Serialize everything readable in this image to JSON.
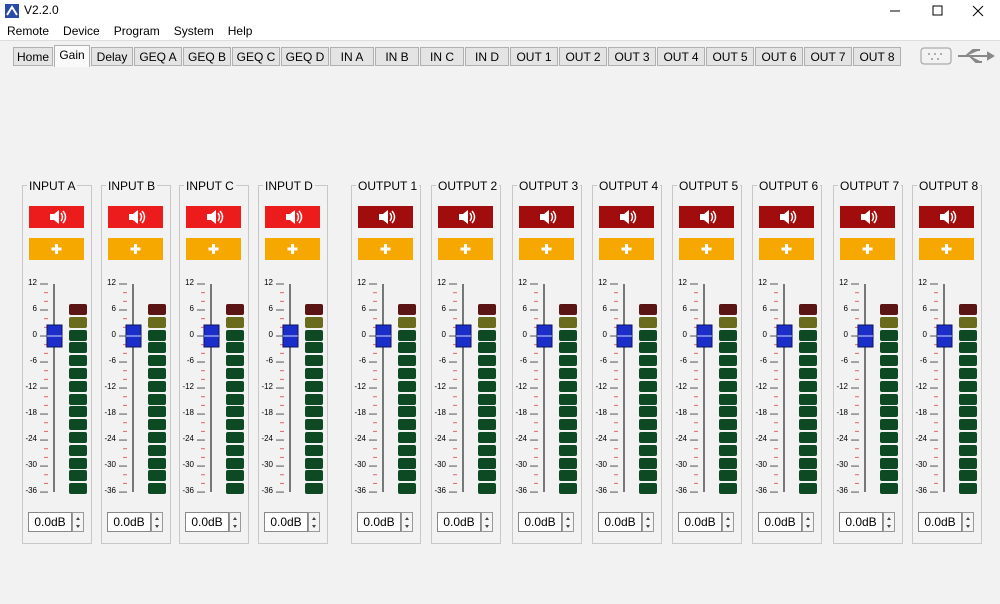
{
  "window": {
    "title": "V2.2.0"
  },
  "menu": [
    "Remote",
    "Device",
    "Program",
    "System",
    "Help"
  ],
  "tabs": [
    "Home",
    "Gain",
    "Delay",
    "GEQ A",
    "GEQ B",
    "GEQ C",
    "GEQ D",
    "IN A",
    "IN B",
    "IN C",
    "IN D",
    "OUT 1",
    "OUT 2",
    "OUT 3",
    "OUT 4",
    "OUT 5",
    "OUT 6",
    "OUT 7",
    "OUT 8"
  ],
  "scale": [
    "12",
    "6",
    "0",
    "-6",
    "-12",
    "-18",
    "-24",
    "-30",
    "-36"
  ],
  "channels": [
    {
      "name": "INPUT A",
      "gain": "0.0dB"
    },
    {
      "name": "INPUT B",
      "gain": "0.0dB"
    },
    {
      "name": "INPUT C",
      "gain": "0.0dB"
    },
    {
      "name": "INPUT D",
      "gain": "0.0dB"
    },
    {
      "name": "OUTPUT 1",
      "gain": "0.0dB"
    },
    {
      "name": "OUTPUT 2",
      "gain": "0.0dB"
    },
    {
      "name": "OUTPUT 3",
      "gain": "0.0dB"
    },
    {
      "name": "OUTPUT 4",
      "gain": "0.0dB"
    },
    {
      "name": "OUTPUT 5",
      "gain": "0.0dB"
    },
    {
      "name": "OUTPUT 6",
      "gain": "0.0dB"
    },
    {
      "name": "OUTPUT 7",
      "gain": "0.0dB"
    },
    {
      "name": "OUTPUT 8",
      "gain": "0.0dB"
    }
  ]
}
